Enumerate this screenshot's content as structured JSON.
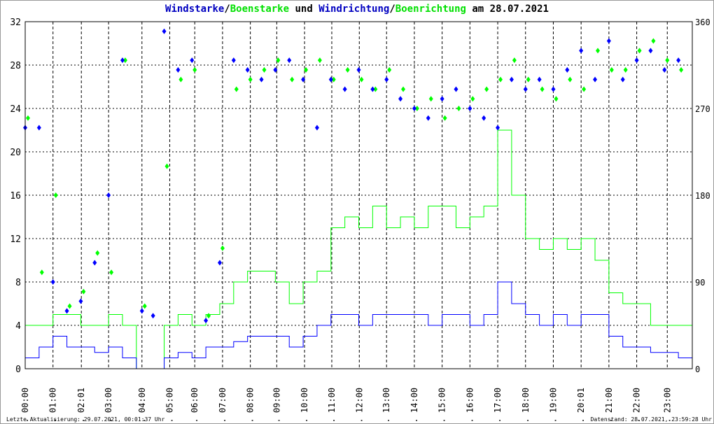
{
  "title": {
    "part1": "Windstarke",
    "sep1": "/",
    "part2": "Boenstarke",
    "mid": " und ",
    "part3": "Windrichtung",
    "sep2": "/",
    "part4": "Boenrichtung",
    "end": " am 28.07.2021"
  },
  "footer": {
    "left": "Letzte Aktualisierung: 29.07.2021, 00:01:37 Uhr",
    "right": "Datenstand: 28.07.2021, 23:59:28 Uhr"
  },
  "colors": {
    "wind": "#0000ff",
    "gust": "#00ff00",
    "grid": "#000000"
  },
  "chart_data": {
    "type": "line",
    "title": "Windstarke/Boenstarke und Windrichtung/Boenrichtung am 28.07.2021",
    "xlabel": "",
    "ylabel": "",
    "xlim": [
      0,
      24
    ],
    "ylim_left": [
      0,
      32
    ],
    "ylim_right": [
      0,
      360
    ],
    "yticks_left": [
      "0",
      "4",
      "8",
      "12",
      "16",
      "20",
      "24",
      "28",
      "32"
    ],
    "yticks_right": [
      "0",
      "90",
      "180",
      "270",
      "360"
    ],
    "xticks": [
      {
        "h": 0,
        "label": "28. 00:00"
      },
      {
        "h": 1,
        "label": "28. 01:00"
      },
      {
        "h": 2.02,
        "label": "28. 02:01"
      },
      {
        "h": 3,
        "label": "28. 03:00"
      },
      {
        "h": 4.2,
        "label": "28. 04:00"
      },
      {
        "h": 5.2,
        "label": "28. 05:00"
      },
      {
        "h": 6.1,
        "label": "28. 06:00"
      },
      {
        "h": 7.1,
        "label": "28. 07:00"
      },
      {
        "h": 8.1,
        "label": "28. 08:00"
      },
      {
        "h": 9.05,
        "label": "28. 09:00"
      },
      {
        "h": 10.05,
        "label": "28. 10:00"
      },
      {
        "h": 11.03,
        "label": "28. 11:00"
      },
      {
        "h": 12.02,
        "label": "28. 12:00"
      },
      {
        "h": 13,
        "label": "28. 13:00"
      },
      {
        "h": 14,
        "label": "28. 14:00"
      },
      {
        "h": 15,
        "label": "28. 15:00"
      },
      {
        "h": 16,
        "label": "28. 16:00"
      },
      {
        "h": 17,
        "label": "28. 17:00"
      },
      {
        "h": 18,
        "label": "28. 18:00"
      },
      {
        "h": 19,
        "label": "28. 19:00"
      },
      {
        "h": 20,
        "label": "28. 20:01"
      },
      {
        "h": 21,
        "label": "28. 21:00"
      },
      {
        "h": 22,
        "label": "28. 22:00"
      },
      {
        "h": 23.1,
        "label": "28. 23:00"
      }
    ],
    "grid": true,
    "series": [
      {
        "name": "Windstarke",
        "axis": "left",
        "style": "line",
        "x": [
          0,
          0.5,
          1,
          1.5,
          2,
          2.5,
          3,
          3.5,
          4,
          4.5,
          5,
          5.5,
          6,
          6.5,
          7,
          7.5,
          8,
          8.5,
          9,
          9.5,
          10,
          10.5,
          11,
          11.5,
          12,
          12.5,
          13,
          13.5,
          14,
          14.5,
          15,
          15.5,
          16,
          16.5,
          17,
          17.5,
          18,
          18.5,
          19,
          19.5,
          20,
          20.5,
          21,
          21.5,
          22,
          22.5,
          23,
          23.5,
          24
        ],
        "values": [
          1,
          2,
          3,
          2,
          2,
          1.5,
          2,
          1,
          0,
          0,
          1,
          1.5,
          1,
          2,
          2,
          2.5,
          3,
          3,
          3,
          2,
          3,
          4,
          5,
          5,
          4,
          5,
          5,
          5,
          5,
          4,
          5,
          5,
          4,
          5,
          8,
          6,
          5,
          4,
          5,
          4,
          5,
          5,
          3,
          2,
          2,
          1.5,
          1.5,
          1,
          0
        ]
      },
      {
        "name": "Boenstarke",
        "axis": "left",
        "style": "line",
        "x": [
          0,
          0.5,
          1,
          1.5,
          2,
          2.5,
          3,
          3.5,
          4,
          4.5,
          5,
          5.5,
          6,
          6.5,
          7,
          7.5,
          8,
          8.5,
          9,
          9.5,
          10,
          10.5,
          11,
          11.5,
          12,
          12.5,
          13,
          13.5,
          14,
          14.5,
          15,
          15.5,
          16,
          16.5,
          17,
          17.5,
          18,
          18.5,
          19,
          19.5,
          20,
          20.5,
          21,
          21.5,
          22,
          22.5,
          23,
          23.5,
          24
        ],
        "values": [
          4,
          4,
          5,
          5,
          4,
          4,
          5,
          4,
          0,
          0,
          4,
          5,
          4,
          5,
          6,
          8,
          9,
          9,
          8,
          6,
          8,
          9,
          13,
          14,
          13,
          15,
          13,
          14,
          13,
          15,
          15,
          13,
          14,
          15,
          22,
          16,
          12,
          11,
          12,
          11,
          12,
          10,
          7,
          6,
          6,
          4,
          4,
          4,
          0
        ]
      },
      {
        "name": "Windrichtung",
        "axis": "right",
        "style": "points",
        "x": [
          0,
          0.5,
          1,
          1.5,
          2,
          2.5,
          3,
          3.5,
          4.2,
          4.6,
          5,
          5.5,
          6,
          6.5,
          7,
          7.5,
          8,
          8.5,
          9,
          9.5,
          10,
          10.5,
          11,
          11.5,
          12,
          12.5,
          13,
          13.5,
          14,
          14.5,
          15,
          15.5,
          16,
          16.5,
          17,
          17.5,
          18,
          18.5,
          19,
          19.5,
          20,
          20.5,
          21,
          21.5,
          22,
          22.5,
          23,
          23.5
        ],
        "values": [
          250,
          250,
          90,
          60,
          70,
          110,
          180,
          320,
          60,
          55,
          350,
          310,
          320,
          50,
          110,
          320,
          310,
          300,
          310,
          320,
          300,
          250,
          300,
          290,
          310,
          290,
          300,
          280,
          270,
          260,
          280,
          290,
          270,
          260,
          250,
          300,
          290,
          300,
          290,
          310,
          330,
          300,
          340,
          300,
          320,
          330,
          310,
          320
        ]
      },
      {
        "name": "Boenrichtung",
        "axis": "right",
        "style": "points",
        "x": [
          0.1,
          0.6,
          1.1,
          1.6,
          2.1,
          2.6,
          3.1,
          3.6,
          4.3,
          5.1,
          5.6,
          6.1,
          6.6,
          7.1,
          7.6,
          8.1,
          8.6,
          9.1,
          9.6,
          10.1,
          10.6,
          11.1,
          11.6,
          12.1,
          12.6,
          13.1,
          13.6,
          14.1,
          14.6,
          15.1,
          15.6,
          16.1,
          16.6,
          17.1,
          17.6,
          18.1,
          18.6,
          19.1,
          19.6,
          20.1,
          20.6,
          21.1,
          21.6,
          22.1,
          22.6,
          23.1,
          23.6
        ],
        "values": [
          260,
          100,
          180,
          65,
          80,
          120,
          100,
          320,
          65,
          210,
          300,
          310,
          55,
          125,
          290,
          300,
          310,
          320,
          300,
          310,
          320,
          300,
          310,
          300,
          290,
          310,
          290,
          270,
          280,
          260,
          270,
          280,
          290,
          300,
          320,
          300,
          290,
          280,
          300,
          290,
          330,
          310,
          310,
          330,
          340,
          320,
          310
        ]
      }
    ]
  }
}
